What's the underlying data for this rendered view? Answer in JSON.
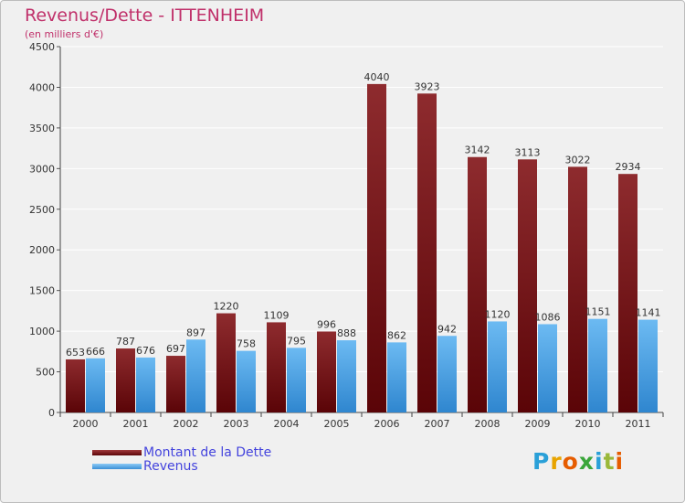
{
  "title": "Revenus/Dette - ITTENHEIM",
  "subtitle": "(en milliers d'€)",
  "colors": {
    "debt": "#6e0f12",
    "revenue": "#4aa3e6",
    "title": "#c0306a",
    "legend_text": "#4444dd"
  },
  "legend": {
    "debt_label": "Montant de la Dette",
    "revenue_label": "Revenus"
  },
  "logo": "Proxiti",
  "chart_data": {
    "type": "bar",
    "title": "Revenus/Dette - ITTENHEIM",
    "subtitle": "(en milliers d'€)",
    "categories": [
      "2000",
      "2001",
      "2002",
      "2003",
      "2004",
      "2005",
      "2006",
      "2007",
      "2008",
      "2009",
      "2010",
      "2011"
    ],
    "series": [
      {
        "name": "Montant de la Dette",
        "values": [
          653,
          787,
          697,
          1220,
          1109,
          996,
          4040,
          3923,
          3142,
          3113,
          3022,
          2934
        ]
      },
      {
        "name": "Revenus",
        "values": [
          666,
          676,
          897,
          758,
          795,
          888,
          862,
          942,
          1120,
          1086,
          1151,
          1141
        ]
      }
    ],
    "ylim": [
      0,
      4500
    ],
    "yticks": [
      "0",
      "500",
      "1000",
      "1500",
      "2000",
      "2500",
      "3000",
      "3500",
      "4000",
      "4500"
    ],
    "grid": true,
    "legend_position": "bottom-left"
  }
}
